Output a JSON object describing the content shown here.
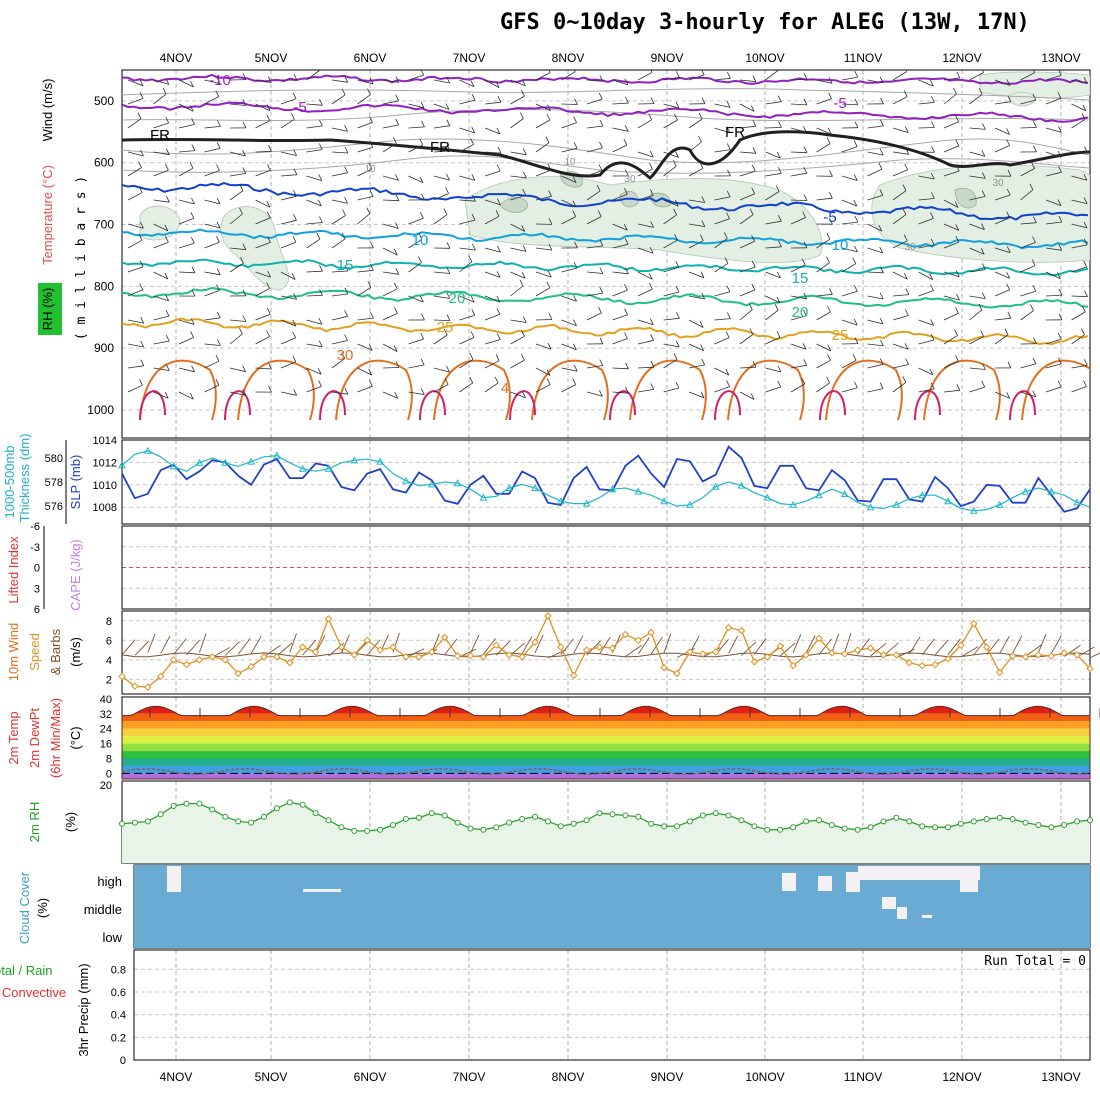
{
  "title": "GFS 0~10day 3-hourly for ALEG (13W, 17N)",
  "days": [
    "4NOV",
    "5NOV",
    "6NOV",
    "7NOV",
    "8NOV",
    "9NOV",
    "10NOV",
    "11NOV",
    "12NOV",
    "13NOV"
  ],
  "panels": {
    "upper_air": {
      "labels": [
        {
          "text": "Wind (m/s)",
          "color": "#000000"
        },
        {
          "text": "Temperature (°C)",
          "color": "#e05050"
        },
        {
          "text": "RH (%)",
          "color": "#000000"
        },
        {
          "text": "( m i l l i b a r s )",
          "color": "#000000"
        }
      ],
      "pressure_levels": [
        500,
        600,
        700,
        800,
        900,
        1000
      ],
      "isotherm_labels": [
        {
          "text": "-10",
          "color": "#a020c0"
        },
        {
          "text": "-5",
          "color": "#a020c0"
        },
        {
          "text": "FR",
          "color": "#000000"
        },
        {
          "text": "-5",
          "color": "#1040d0"
        },
        {
          "text": "10",
          "color": "#10a0e0"
        },
        {
          "text": "15",
          "color": "#10b0b0"
        },
        {
          "text": "20",
          "color": "#20c080"
        },
        {
          "text": "25",
          "color": "#e0a020"
        },
        {
          "text": "30",
          "color": "#e07020"
        },
        {
          "text": "30",
          "color": "#909090"
        }
      ]
    },
    "pressure": {
      "labels": [
        {
          "text": "1000-500mb",
          "color": "#20b0c0"
        },
        {
          "text": "Thickness (dm)",
          "color": "#20b0c0"
        },
        {
          "text": "SLP (mb)",
          "color": "#2040c0"
        }
      ],
      "thickness_ticks": [
        576,
        578,
        580
      ],
      "slp_ticks": [
        1008,
        1010,
        1012,
        1014
      ]
    },
    "stability": {
      "labels": [
        {
          "text": "Lifted Index",
          "color": "#e03030"
        },
        {
          "text": "CAPE (J/kg)",
          "color": "#c080e0"
        }
      ],
      "ticks": [
        "-6",
        "-3",
        "0",
        "3",
        "6"
      ]
    },
    "wind10m": {
      "labels": [
        {
          "text": "10m Wind",
          "color": "#e07020"
        },
        {
          "text": "Speed",
          "color": "#e09020"
        },
        {
          "text": "& Barbs",
          "color": "#805030"
        },
        {
          "text": "(m/s)",
          "color": "#000000"
        }
      ],
      "ticks": [
        2,
        4,
        6,
        8
      ]
    },
    "temp2m": {
      "labels": [
        {
          "text": "2m Temp",
          "color": "#e03030"
        },
        {
          "text": "2m DewPt",
          "color": "#e03030"
        },
        {
          "text": "(6hr Min/Max)",
          "color": "#e03030"
        },
        {
          "text": "(°C)",
          "color": "#000000"
        }
      ],
      "ticks": [
        0,
        8,
        16,
        24,
        32,
        40
      ]
    },
    "rh2m": {
      "labels": [
        {
          "text": "2m RH",
          "color": "#20a020"
        },
        {
          "text": "(%)",
          "color": "#000000"
        }
      ],
      "ticks": [
        20
      ]
    },
    "cloud": {
      "labels": [
        {
          "text": "Cloud Cover",
          "color": "#40a0c0"
        },
        {
          "text": "(%)",
          "color": "#000000"
        }
      ],
      "levels": [
        "high",
        "middle",
        "low"
      ]
    },
    "precip": {
      "labels": [
        {
          "text": "Total / Rain",
          "color": "#20a020"
        },
        {
          "text": "Convective",
          "color": "#e03030"
        },
        {
          "text": "3hr Precip (mm)",
          "color": "#000000"
        }
      ],
      "ticks": [
        "0",
        "0.2",
        "0.4",
        "0.6",
        "0.8"
      ],
      "run_total": "Run Total = 0"
    }
  },
  "chart_data": [
    {
      "type": "line",
      "name": "pressure",
      "x": [
        "03Z 4NOV",
        "06Z",
        "09Z",
        "12Z",
        "15Z",
        "18Z",
        "21Z",
        "00Z 5NOV",
        "03Z",
        "06Z",
        "09Z",
        "12Z",
        "15Z",
        "18Z",
        "21Z",
        "00Z 6NOV",
        "03Z",
        "06Z",
        "09Z",
        "12Z",
        "15Z",
        "18Z",
        "21Z",
        "00Z 7NOV",
        "03Z",
        "06Z",
        "09Z",
        "12Z",
        "15Z",
        "18Z",
        "21Z",
        "00Z 8NOV",
        "03Z",
        "06Z",
        "09Z",
        "12Z",
        "15Z",
        "18Z",
        "21Z",
        "00Z 9NOV",
        "03Z",
        "06Z",
        "09Z",
        "12Z",
        "15Z",
        "18Z",
        "21Z",
        "00Z 10NOV",
        "03Z",
        "06Z",
        "09Z",
        "12Z",
        "15Z",
        "18Z",
        "21Z",
        "00Z 11NOV",
        "03Z",
        "06Z",
        "09Z",
        "12Z",
        "15Z",
        "18Z",
        "21Z",
        "00Z 12NOV",
        "03Z",
        "06Z",
        "09Z",
        "12Z",
        "15Z",
        "18Z",
        "21Z",
        "00Z 13NOV",
        "03Z",
        "06Z",
        "09Z",
        "12Z"
      ],
      "series": [
        {
          "name": "SLP (mb)",
          "color": "#2040c8",
          "values": [
            1011.0,
            1008.8,
            1009.2,
            1011.3,
            1011.8,
            1010.5,
            1011.2,
            1012.2,
            1012.0,
            1010.8,
            1010.0,
            1011.8,
            1012.3,
            1010.6,
            1010.6,
            1011.9,
            1011.7,
            1009.8,
            1009.5,
            1011.0,
            1011.4,
            1009.6,
            1009.3,
            1011.1,
            1010.4,
            1008.6,
            1008.3,
            1010.0,
            1010.8,
            1009.2,
            1009.2,
            1011.2,
            1010.6,
            1008.4,
            1008.2,
            1010.6,
            1011.6,
            1009.6,
            1009.5,
            1011.7,
            1012.6,
            1011.0,
            1009.8,
            1012.3,
            1012.1,
            1010.3,
            1010.9,
            1013.4,
            1012.4,
            1009.9,
            1009.7,
            1011.7,
            1011.7,
            1009.7,
            1009.5,
            1011.3,
            1010.4,
            1008.6,
            1008.5,
            1010.5,
            1010.5,
            1008.7,
            1008.5,
            1010.7,
            1009.7,
            1008.1,
            1008.5,
            1010.0,
            1009.9,
            1008.4,
            1008.4,
            1010.6,
            1009.1,
            1007.6,
            1007.9,
            1009.6
          ]
        },
        {
          "name": "Thickness (dm)",
          "color": "#20b8c8",
          "values": [
            579.4,
            580.3,
            580.6,
            580.1,
            579.3,
            578.9,
            579.6,
            580.0,
            579.6,
            579.3,
            579.7,
            580.1,
            580.2,
            579.6,
            579.1,
            578.9,
            579.1,
            579.6,
            579.8,
            579.9,
            579.7,
            578.7,
            578.1,
            577.7,
            577.8,
            578.0,
            577.9,
            577.4,
            576.7,
            576.8,
            577.5,
            577.8,
            577.5,
            576.9,
            576.4,
            576.2,
            576.2,
            576.7,
            577.4,
            577.5,
            577.2,
            576.9,
            576.4,
            576.0,
            576.1,
            576.7,
            577.6,
            578.0,
            577.7,
            577.1,
            576.7,
            576.2,
            576.1,
            576.4,
            576.9,
            577.4,
            577.0,
            576.3,
            575.9,
            575.8,
            576.1,
            576.6,
            576.9,
            576.9,
            576.4,
            575.8,
            575.6,
            575.7,
            576.1,
            576.7,
            577.2,
            577.5,
            577.2,
            576.9,
            576.3,
            575.9
          ]
        }
      ],
      "ylim_slp": [
        1006.5,
        1014
      ],
      "ylim_thickness": [
        574.5,
        581.5
      ]
    },
    {
      "type": "line",
      "name": "wind10m",
      "x_count": 76,
      "series": [
        {
          "name": "Speed",
          "color": "#e09020",
          "values": [
            2.3,
            1.3,
            1.2,
            2.3,
            4.0,
            3.5,
            4.0,
            4.3,
            4.0,
            2.6,
            3.3,
            4.3,
            4.3,
            3.7,
            5.3,
            4.8,
            8.2,
            5.3,
            4.5,
            6.0,
            5.0,
            5.3,
            4.3,
            4.3,
            4.8,
            6.3,
            4.4,
            4.4,
            4.3,
            5.5,
            4.5,
            4.3,
            5.8,
            8.5,
            5.3,
            2.4,
            5.0,
            5.3,
            5.2,
            6.6,
            6.0,
            6.8,
            3.2,
            2.6,
            4.8,
            4.6,
            4.8,
            7.3,
            7.0,
            3.8,
            4.3,
            5.4,
            3.4,
            4.5,
            6.2,
            4.7,
            4.6,
            5.0,
            5.2,
            4.5,
            4.5,
            3.7,
            3.4,
            3.5,
            4.1,
            5.5,
            7.7,
            5.3,
            2.7,
            4.4,
            4.3,
            4.5,
            4.4,
            4.7,
            4.5,
            3.1
          ]
        }
      ],
      "ylim": [
        0.5,
        9
      ]
    },
    {
      "type": "line",
      "name": "rh2m",
      "x_count": 76,
      "series": [
        {
          "name": "2m RH",
          "color": "#30a030",
          "values": [
            39,
            40,
            41,
            47,
            54,
            56,
            56,
            51,
            45,
            41,
            40,
            45,
            52,
            57,
            55,
            48,
            42,
            36,
            33,
            33,
            34,
            38,
            43,
            44,
            48,
            46,
            40,
            35,
            34,
            36,
            40,
            43,
            45,
            41,
            37,
            39,
            42,
            48,
            47,
            46,
            45,
            39,
            37,
            37,
            41,
            46,
            48,
            46,
            42,
            37,
            34,
            34,
            36,
            41,
            42,
            38,
            35,
            34,
            36,
            41,
            44,
            41,
            37,
            36,
            36,
            39,
            41,
            43,
            44,
            43,
            40,
            38,
            36,
            38,
            41,
            42
          ]
        }
      ],
      "ylim": [
        2,
        25
      ]
    },
    {
      "type": "area",
      "name": "temp2m",
      "series": [
        {
          "name": "2m Temp max",
          "color": "#c00000",
          "values": [
            32,
            36,
            32,
            36,
            32,
            36,
            32,
            36,
            32,
            36,
            32,
            36,
            32,
            36,
            32,
            36,
            32,
            36,
            32,
            36
          ]
        },
        {
          "name": "2m DewPt",
          "color": "#303030",
          "values": [
            1,
            2,
            1,
            3,
            1,
            2,
            0,
            1,
            0,
            1,
            0,
            1,
            0,
            1,
            0,
            1,
            0,
            1,
            0,
            0
          ]
        }
      ],
      "ylim": [
        -3,
        41
      ]
    },
    {
      "type": "table",
      "name": "cloud_cover",
      "levels": [
        "high",
        "middle",
        "low"
      ],
      "value": 0
    },
    {
      "type": "bar",
      "name": "precip",
      "values": [
        0
      ],
      "ylim": [
        0,
        1
      ]
    }
  ]
}
